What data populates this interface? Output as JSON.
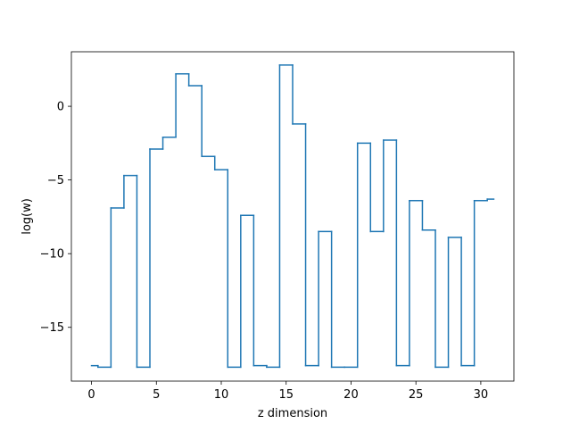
{
  "chart_data": {
    "type": "line",
    "drawstyle": "steps-mid",
    "title": "",
    "xlabel": "z dimension",
    "ylabel": "log(w)",
    "xlim": [
      -1.55,
      32.55
    ],
    "ylim": [
      -18.65,
      3.7
    ],
    "xticks": [
      0,
      5,
      10,
      15,
      20,
      25,
      30
    ],
    "yticks": [
      -15,
      -10,
      -5,
      0
    ],
    "xtick_labels": [
      "0",
      "5",
      "10",
      "15",
      "20",
      "25",
      "30"
    ],
    "ytick_labels": [
      "−15",
      "−10",
      "−5",
      "0"
    ],
    "grid": false,
    "color": "#1f77b4",
    "series": [
      {
        "x": [
          0,
          1,
          2,
          3,
          4,
          5,
          6,
          7,
          8,
          9,
          10,
          11,
          12,
          13,
          14,
          15,
          16,
          17,
          18,
          19,
          20,
          21,
          22,
          23,
          24,
          25,
          26,
          27,
          28,
          29,
          30,
          31
        ],
        "values": [
          -17.6,
          -17.7,
          -6.9,
          -4.7,
          -17.7,
          -2.9,
          -2.1,
          2.2,
          1.4,
          -3.4,
          -4.3,
          -17.7,
          -7.4,
          -17.6,
          -17.7,
          2.8,
          -1.2,
          -17.6,
          -8.5,
          -17.7,
          -17.7,
          -2.5,
          -8.5,
          -2.3,
          -17.6,
          -6.4,
          -8.4,
          -17.7,
          -8.9,
          -17.6,
          -6.4,
          -6.3
        ]
      }
    ]
  }
}
